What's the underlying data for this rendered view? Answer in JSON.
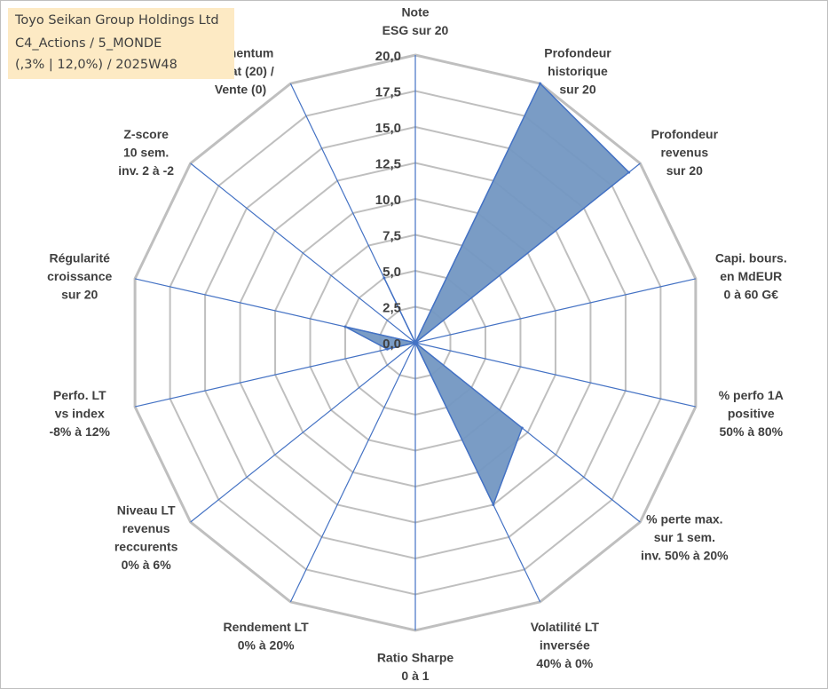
{
  "title_box": {
    "line1": "Toyo Seikan Group Holdings Ltd",
    "line2": "C4_Actions / 5_MONDE",
    "line3": "(,3% | 12,0%) / 2025W48"
  },
  "colors": {
    "fill": "#7397c2",
    "stroke": "#4472c4",
    "grid": "#bfbfbf",
    "spoke": "#4472c4",
    "title_bg": "#fdeac4",
    "text": "#404040"
  },
  "chart_data": {
    "type": "radar",
    "rmin": 0,
    "rmax": 20,
    "step": 2.5,
    "tick_labels": [
      "0,0",
      "2,5",
      "5,0",
      "7,5",
      "10,0",
      "12,5",
      "15,0",
      "17,5",
      "20,0"
    ],
    "axes": [
      {
        "label": [
          "Note",
          "ESG sur 20"
        ],
        "value": 0
      },
      {
        "label": [
          "Profondeur",
          "historique",
          "sur 20"
        ],
        "value": 20
      },
      {
        "label": [
          "Profondeur",
          "revenus",
          "sur 20"
        ],
        "value": 19
      },
      {
        "label": [
          "Capi. bours.",
          "en MdEUR",
          "0 à 60 G€"
        ],
        "value": 0
      },
      {
        "label": [
          "% perfo 1A",
          "positive",
          "50% à 80%"
        ],
        "value": 0
      },
      {
        "label": [
          "% perte max.",
          "sur 1 sem.",
          "inv. 50% à 20%"
        ],
        "value": 9.5
      },
      {
        "label": [
          "Volatilité LT",
          "inversée",
          "40% à 0%"
        ],
        "value": 12.5
      },
      {
        "label": [
          "Ratio Sharpe",
          "0 à 1"
        ],
        "value": 0
      },
      {
        "label": [
          "Rendement LT",
          "0% à 20%"
        ],
        "value": 0
      },
      {
        "label": [
          "Niveau LT",
          "revenus",
          "reccurents",
          "0% à 6%"
        ],
        "value": 0
      },
      {
        "label": [
          "Perfo. LT",
          "vs index",
          "-8% à 12%"
        ],
        "value": 2
      },
      {
        "label": [
          "Régularité",
          "croissance",
          "sur 20"
        ],
        "value": 5
      },
      {
        "label": [
          "Z-score",
          "10 sem.",
          "inv. 2 à -2"
        ],
        "value": 0
      },
      {
        "label": [
          "Momentum",
          "Achat (20) /",
          "Vente (0)"
        ],
        "value": 5
      }
    ]
  }
}
